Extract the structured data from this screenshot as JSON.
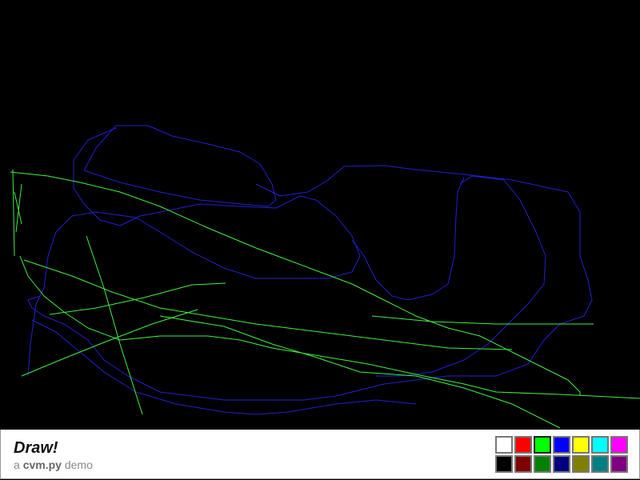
{
  "app": {
    "title": "Draw!",
    "subtitle_prefix": "a",
    "subtitle_brand": "cvm.py",
    "subtitle_suffix": "demo"
  },
  "palette": {
    "selected_index": 2,
    "colors": [
      "#ffffff",
      "#ff0000",
      "#00ff00",
      "#0000ff",
      "#ffff00",
      "#00ffff",
      "#ff00ff",
      "#000000",
      "#800000",
      "#008000",
      "#000080",
      "#808000",
      "#008080",
      "#800080"
    ]
  },
  "stroke_colors": {
    "blue": "#2020d0",
    "green": "#40f040"
  }
}
